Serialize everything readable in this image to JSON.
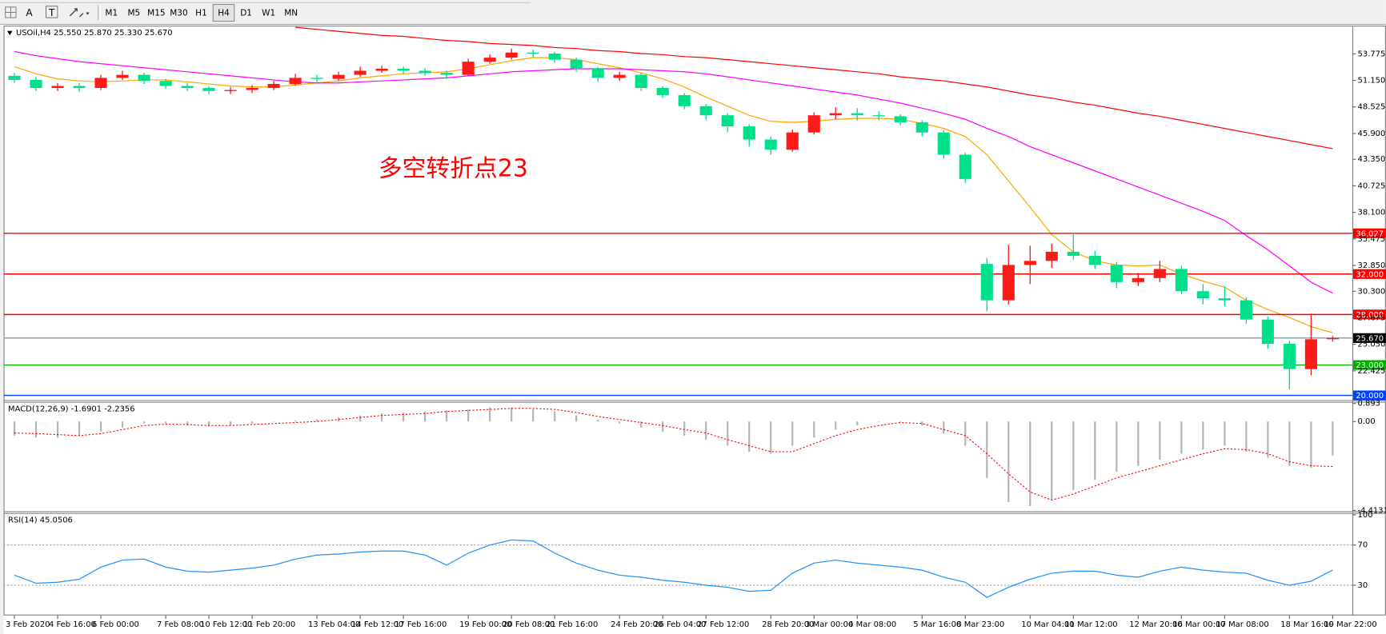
{
  "toolbar": {
    "text_tools": [
      "A",
      "T"
    ],
    "timeframes": [
      "M1",
      "M5",
      "M15",
      "M30",
      "H1",
      "H4",
      "D1",
      "W1",
      "MN"
    ],
    "active_timeframe": "H4"
  },
  "chart_data": [
    {
      "type": "candlestick",
      "title": "USOil,H4  25.550 25.870 25.330 25.670",
      "annotation": "多空转折点23",
      "annotation_color": "#ff0000",
      "categories": [
        "3 Feb 2020",
        null,
        "4 Feb 16:00",
        null,
        "6 Feb 00:00",
        null,
        null,
        "7 Feb 08:00",
        null,
        "10 Feb 12:00",
        null,
        "11 Feb 20:00",
        null,
        null,
        "13 Feb 04:00",
        null,
        "14 Feb 12:00",
        null,
        "17 Feb 16:00",
        null,
        null,
        "19 Feb 00:00",
        null,
        "20 Feb 08:00",
        null,
        "21 Feb 16:00",
        null,
        null,
        "24 Feb 20:00",
        null,
        "26 Feb 04:00",
        null,
        "27 Feb 12:00",
        null,
        null,
        "28 Feb 20:00",
        null,
        "3 Mar 00:00",
        null,
        "4 Mar 08:00",
        null,
        null,
        "5 Mar 16:00",
        null,
        "8 Mar 23:00",
        null,
        null,
        "10 Mar 04:00",
        null,
        "11 Mar 12:00",
        null,
        null,
        "12 Mar 20:00",
        null,
        "16 Mar 00:00",
        null,
        "17 Mar 08:00",
        null,
        null,
        "18 Mar 16:00",
        null,
        "19 Mar 22:00"
      ],
      "up_color": "#ff1a1a",
      "down_color": "#00e08a",
      "open": [
        51.6,
        51.2,
        50.4,
        50.6,
        50.4,
        51.4,
        51.7,
        51.1,
        50.6,
        50.4,
        50.1,
        50.2,
        50.4,
        50.8,
        51.4,
        51.3,
        51.7,
        52.1,
        52.3,
        52.1,
        51.9,
        51.7,
        53.0,
        53.4,
        53.9,
        53.8,
        53.2,
        52.3,
        51.4,
        51.7,
        50.4,
        49.7,
        48.6,
        47.7,
        46.6,
        45.3,
        44.3,
        46.0,
        47.7,
        47.9,
        47.7,
        47.6,
        47.0,
        46.0,
        43.8,
        33.0,
        29.4,
        32.9,
        33.3,
        34.2,
        33.8,
        32.9,
        31.2,
        31.6,
        32.5,
        30.3,
        29.6,
        29.4,
        27.5,
        25.1,
        22.6,
        25.55
      ],
      "high": [
        51.9,
        51.5,
        50.9,
        50.9,
        51.7,
        52.1,
        51.9,
        51.3,
        50.9,
        50.6,
        50.5,
        50.7,
        51.1,
        51.8,
        51.7,
        52.0,
        52.5,
        52.6,
        52.5,
        52.4,
        52.1,
        53.3,
        53.7,
        54.3,
        54.2,
        54.0,
        53.4,
        52.5,
        52.0,
        51.9,
        50.6,
        49.9,
        48.8,
        47.9,
        46.8,
        45.6,
        46.3,
        48.0,
        48.5,
        48.4,
        48.1,
        47.8,
        47.2,
        46.2,
        44.0,
        33.6,
        34.9,
        34.8,
        35.0,
        36.1,
        34.3,
        33.2,
        32.1,
        33.3,
        32.8,
        31.0,
        30.8,
        29.7,
        27.8,
        25.4,
        28.1,
        25.87
      ],
      "low": [
        50.9,
        50.1,
        50.1,
        50.0,
        50.2,
        51.2,
        50.8,
        50.3,
        50.1,
        49.8,
        49.8,
        49.9,
        50.2,
        50.6,
        51.0,
        51.1,
        51.5,
        51.9,
        51.8,
        51.6,
        51.3,
        51.6,
        52.8,
        53.2,
        53.4,
        52.9,
        52.0,
        51.0,
        51.1,
        50.1,
        49.4,
        48.3,
        47.2,
        46.0,
        44.6,
        43.8,
        44.1,
        45.8,
        47.3,
        47.2,
        47.2,
        46.7,
        45.6,
        43.4,
        41.0,
        28.3,
        29.0,
        31.0,
        32.6,
        33.4,
        32.5,
        30.6,
        30.8,
        31.2,
        30.0,
        29.0,
        28.8,
        27.1,
        24.6,
        20.6,
        22.0,
        25.33
      ],
      "close": [
        51.2,
        50.4,
        50.6,
        50.4,
        51.4,
        51.7,
        51.1,
        50.6,
        50.4,
        50.1,
        50.2,
        50.4,
        50.8,
        51.4,
        51.3,
        51.7,
        52.1,
        52.3,
        52.1,
        51.9,
        51.7,
        53.0,
        53.4,
        53.9,
        53.8,
        53.2,
        52.3,
        51.4,
        51.7,
        50.4,
        49.7,
        48.6,
        47.7,
        46.6,
        45.3,
        44.3,
        46.0,
        47.7,
        47.9,
        47.7,
        47.6,
        47.0,
        46.0,
        43.8,
        41.4,
        29.4,
        32.9,
        33.3,
        34.2,
        33.8,
        32.9,
        31.2,
        31.6,
        32.5,
        30.3,
        29.6,
        29.4,
        27.5,
        25.1,
        22.6,
        25.55,
        25.67
      ],
      "lines": [
        {
          "color": "#ffa500",
          "values": [
            52.5,
            51.8,
            51.3,
            51.1,
            51.0,
            51.1,
            51.2,
            51.2,
            51.0,
            50.8,
            50.6,
            50.5,
            50.5,
            50.7,
            50.9,
            51.1,
            51.4,
            51.6,
            51.8,
            51.9,
            52.0,
            52.3,
            52.7,
            53.1,
            53.4,
            53.4,
            53.2,
            52.8,
            52.4,
            51.9,
            51.3,
            50.5,
            49.5,
            48.6,
            47.7,
            47.1,
            47.0,
            47.1,
            47.3,
            47.4,
            47.4,
            47.3,
            46.9,
            46.4,
            45.6,
            43.8,
            41.2,
            38.6,
            35.9,
            34.2,
            33.3,
            32.9,
            32.8,
            32.9,
            32.0,
            31.3,
            30.7,
            29.4,
            28.5,
            27.7,
            26.8,
            26.2
          ]
        },
        {
          "color": "#ff00ff",
          "values": [
            54.0,
            53.6,
            53.3,
            53.0,
            52.8,
            52.6,
            52.4,
            52.2,
            52.0,
            51.8,
            51.6,
            51.4,
            51.2,
            51.0,
            50.9,
            50.9,
            51.0,
            51.1,
            51.2,
            51.3,
            51.4,
            51.6,
            51.8,
            52.0,
            52.1,
            52.2,
            52.3,
            52.3,
            52.3,
            52.2,
            52.1,
            52.0,
            51.8,
            51.5,
            51.2,
            50.9,
            50.6,
            50.3,
            50.0,
            49.7,
            49.3,
            48.9,
            48.4,
            47.9,
            47.3,
            46.4,
            45.6,
            44.6,
            43.8,
            43.0,
            42.2,
            41.4,
            40.6,
            39.8,
            39.0,
            38.2,
            37.3,
            35.8,
            34.4,
            32.8,
            31.2,
            30.1
          ]
        },
        {
          "color": "#ff0000",
          "values": [
            null,
            null,
            null,
            null,
            null,
            null,
            null,
            null,
            null,
            null,
            null,
            null,
            null,
            56.4,
            56.2,
            56.0,
            55.8,
            55.6,
            55.5,
            55.3,
            55.1,
            55.0,
            54.8,
            54.7,
            54.6,
            54.4,
            54.3,
            54.1,
            54.0,
            53.8,
            53.7,
            53.5,
            53.4,
            53.2,
            53.0,
            52.8,
            52.6,
            52.4,
            52.2,
            52.0,
            51.8,
            51.5,
            51.3,
            51.1,
            50.8,
            50.5,
            50.1,
            49.7,
            49.4,
            49.0,
            48.7,
            48.3,
            47.9,
            47.6,
            47.2,
            46.8,
            46.4,
            46.0,
            45.6,
            45.2,
            44.8,
            44.4
          ]
        }
      ],
      "levels": [
        {
          "value": 36.027,
          "color": "#ff0000"
        },
        {
          "value": 32,
          "label": "32.000",
          "color": "#ff0000"
        },
        {
          "value": 28,
          "label": "28.000",
          "color": "#ff0000"
        },
        {
          "value": 25.67,
          "label": "25.670",
          "color": "#8a9aaa",
          "label_color": "#000000"
        },
        {
          "value": 23,
          "label": "23.000",
          "color": "#00b000"
        },
        {
          "value": 20,
          "label": "20.000",
          "color": "#0040ff"
        }
      ],
      "ylim": [
        19.63,
        56.48
      ],
      "yticks": [
        53.775,
        {
          "value": 51.15,
          "label": "51.150"
        },
        48.525,
        {
          "value": 45.9,
          "label": "45.900"
        },
        {
          "value": 43.35,
          "label": "43.350"
        },
        40.725,
        {
          "value": 38.1,
          "label": "38.100"
        },
        35.475,
        {
          "value": 32.85,
          "label": "32.850"
        },
        {
          "value": 30.3,
          "label": "30.300"
        },
        27.675,
        {
          "value": 25.05,
          "label": "25.050"
        },
        22.425
      ]
    },
    {
      "type": "macd",
      "title": "MACD(12,26,9) -1.6901 -2.2356",
      "histogram": {
        "color": "#b4b4b4",
        "values": [
          -0.7,
          -0.8,
          -0.8,
          -0.7,
          -0.5,
          -0.3,
          -0.1,
          -0.1,
          -0.2,
          -0.25,
          -0.2,
          -0.1,
          0.0,
          0.05,
          0.1,
          0.2,
          0.3,
          0.4,
          0.45,
          0.5,
          0.55,
          0.6,
          0.7,
          0.7,
          0.6,
          0.5,
          0.3,
          0.1,
          -0.1,
          -0.3,
          -0.5,
          -0.7,
          -0.9,
          -1.2,
          -1.5,
          -1.6,
          -1.2,
          -0.8,
          -0.4,
          -0.2,
          0.0,
          0.0,
          -0.2,
          -0.6,
          -1.2,
          -2.8,
          -4.0,
          -4.2,
          -3.9,
          -3.4,
          -2.9,
          -2.5,
          -2.2,
          -1.9,
          -1.6,
          -1.4,
          -1.2,
          -1.5,
          -1.8,
          -2.2,
          -2.3,
          -1.6901
        ]
      },
      "signal": {
        "color": "#ff0000",
        "values": [
          -0.57,
          -0.6,
          -0.65,
          -0.7,
          -0.6,
          -0.4,
          -0.2,
          -0.13,
          -0.15,
          -0.2,
          -0.2,
          -0.15,
          -0.1,
          -0.05,
          0.0,
          0.1,
          0.2,
          0.3,
          0.35,
          0.4,
          0.5,
          0.55,
          0.6,
          0.65,
          0.65,
          0.6,
          0.45,
          0.25,
          0.1,
          -0.05,
          -0.2,
          -0.4,
          -0.57,
          -0.9,
          -1.2,
          -1.5,
          -1.5,
          -1.1,
          -0.7,
          -0.4,
          -0.2,
          -0.05,
          -0.1,
          -0.4,
          -0.7,
          -1.6,
          -2.6,
          -3.5,
          -3.9,
          -3.6,
          -3.2,
          -2.8,
          -2.5,
          -2.2,
          -1.9,
          -1.6,
          -1.35,
          -1.4,
          -1.6,
          -2.0,
          -2.2,
          -2.2356
        ]
      },
      "ylim": [
        -4.4131,
        0.893
      ],
      "yticks": [
        0.893,
        {
          "value": 0,
          "label": "0.00"
        },
        -4.4131
      ]
    },
    {
      "type": "rsi",
      "title": "RSI(14) 45.0506",
      "color": "#1e90ff",
      "values": [
        40,
        32,
        33,
        36,
        48,
        55,
        56,
        48,
        44,
        43,
        45,
        47,
        50,
        56,
        60,
        61,
        63,
        64,
        64,
        60,
        50,
        62,
        70,
        75,
        74,
        62,
        52,
        45,
        40,
        38,
        35,
        33,
        30,
        28,
        24,
        25,
        42,
        52,
        55,
        52,
        50,
        48,
        45,
        38,
        33,
        18,
        28,
        36,
        42,
        44,
        44,
        40,
        38,
        44,
        48,
        45,
        43,
        42,
        35,
        30,
        34,
        45.0506
      ],
      "dotted_levels": [
        70,
        30
      ],
      "ylim": [
        0,
        100
      ],
      "yticks": [
        100,
        70,
        30
      ]
    }
  ]
}
